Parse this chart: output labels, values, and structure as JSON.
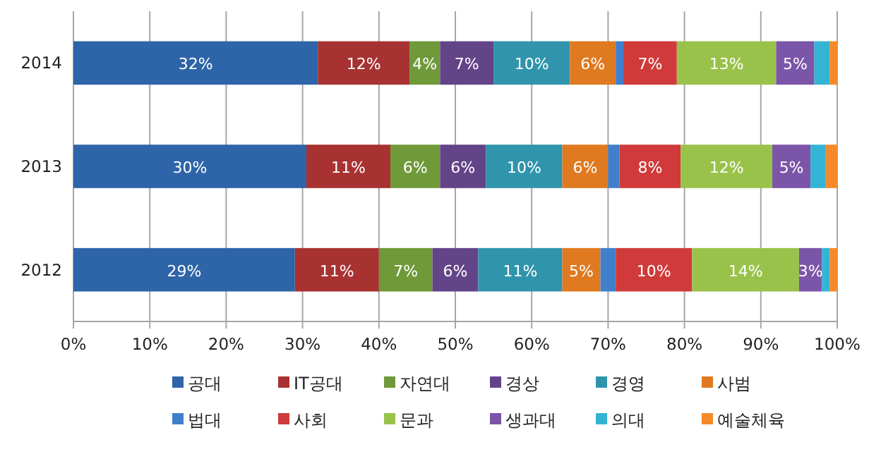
{
  "chart_data": {
    "type": "bar",
    "orientation": "horizontal",
    "stacked": true,
    "categories": [
      "2014",
      "2013",
      "2012"
    ],
    "xlim": [
      0,
      100
    ],
    "xticks": [
      {
        "value": 0,
        "label": "0%"
      },
      {
        "value": 10,
        "label": "10%"
      },
      {
        "value": 20,
        "label": "20%"
      },
      {
        "value": 30,
        "label": "30%"
      },
      {
        "value": 40,
        "label": "40%"
      },
      {
        "value": 50,
        "label": "50%"
      },
      {
        "value": 60,
        "label": "60%"
      },
      {
        "value": 70,
        "label": "70%"
      },
      {
        "value": 80,
        "label": "80%"
      },
      {
        "value": 90,
        "label": "90%"
      },
      {
        "value": 100,
        "label": "100%"
      }
    ],
    "grid": "x",
    "legend": "bottom",
    "series": [
      {
        "name": "공대",
        "color": "#2e64a8",
        "values": [
          32,
          30.5,
          29
        ],
        "value_labels": [
          "32%",
          "30%",
          "29%"
        ]
      },
      {
        "name": "IT공대",
        "color": "#a83232",
        "values": [
          12,
          11,
          11
        ],
        "value_labels": [
          "12%",
          "11%",
          "11%"
        ]
      },
      {
        "name": "자연대",
        "color": "#70993a",
        "values": [
          4,
          6.5,
          7
        ],
        "value_labels": [
          "4%",
          "6%",
          "7%"
        ]
      },
      {
        "name": "경상",
        "color": "#634488",
        "values": [
          7,
          6,
          6
        ],
        "value_labels": [
          "7%",
          "6%",
          "6%"
        ]
      },
      {
        "name": "경영",
        "color": "#2f94ac",
        "values": [
          10,
          10,
          11
        ],
        "value_labels": [
          "10%",
          "10%",
          "11%"
        ]
      },
      {
        "name": "사범",
        "color": "#e07a20",
        "values": [
          6,
          6,
          5
        ],
        "value_labels": [
          "6%",
          "6%",
          "5%"
        ]
      },
      {
        "name": "법대",
        "color": "#3f7fcc",
        "values": [
          1,
          1.5,
          2
        ],
        "value_labels": [
          null,
          null,
          null
        ]
      },
      {
        "name": "사회",
        "color": "#d03a3a",
        "values": [
          7,
          8,
          10
        ],
        "value_labels": [
          "7%",
          "8%",
          "10%"
        ]
      },
      {
        "name": "문과",
        "color": "#99c24a",
        "values": [
          13,
          12,
          14
        ],
        "value_labels": [
          "13%",
          "12%",
          "14%"
        ]
      },
      {
        "name": "생과대",
        "color": "#7b55a8",
        "values": [
          5,
          5,
          3
        ],
        "value_labels": [
          "5%",
          "5%",
          "3%"
        ]
      },
      {
        "name": "의대",
        "color": "#33b4d4",
        "values": [
          2,
          2,
          1
        ],
        "value_labels": [
          null,
          null,
          null
        ]
      },
      {
        "name": "예술체육",
        "color": "#f58a2a",
        "values": [
          1,
          1.5,
          1
        ],
        "value_labels": [
          null,
          null,
          null
        ]
      }
    ]
  }
}
